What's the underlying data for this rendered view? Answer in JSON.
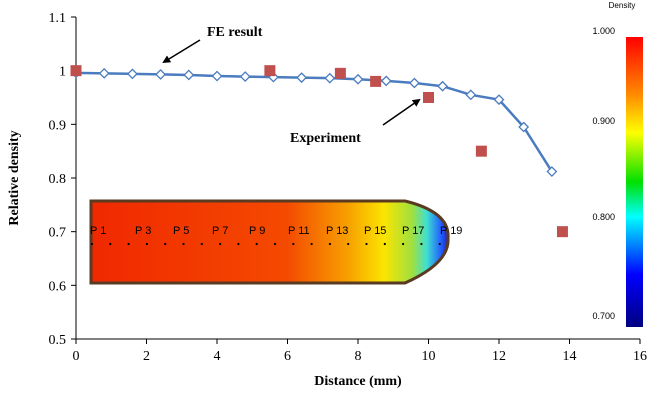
{
  "chart_data": {
    "type": "line",
    "xlabel": "Distance (mm)",
    "ylabel": "Relative density",
    "xlim": [
      0,
      16
    ],
    "ylim": [
      0.5,
      1.1
    ],
    "xticks": [
      "0",
      "2",
      "4",
      "6",
      "8",
      "10",
      "12",
      "14",
      "16"
    ],
    "yticks": [
      "0.5",
      "0.6",
      "0.7",
      "0.8",
      "0.9",
      "1",
      "1.1"
    ],
    "grid": false,
    "series": [
      {
        "name": "FE result",
        "style": "line-with-open-diamonds",
        "color": "#4a7cbf",
        "x": [
          0,
          0.8,
          1.6,
          2.4,
          3.2,
          4.0,
          4.8,
          5.6,
          6.4,
          7.2,
          8.0,
          8.8,
          9.6,
          10.4,
          11.2,
          12.0,
          12.7,
          13.5
        ],
        "y": [
          0.996,
          0.995,
          0.994,
          0.993,
          0.992,
          0.99,
          0.989,
          0.988,
          0.987,
          0.986,
          0.984,
          0.981,
          0.977,
          0.971,
          0.955,
          0.946,
          0.895,
          0.812
        ]
      },
      {
        "name": "Experiment",
        "style": "filled-squares",
        "color": "#c0504d",
        "x": [
          0,
          5.5,
          7.5,
          8.5,
          10.0,
          11.5,
          13.8
        ],
        "y": [
          1.0,
          1.0,
          0.995,
          0.98,
          0.95,
          0.85,
          0.7
        ]
      }
    ],
    "annotations": [
      {
        "text": "FE result",
        "points_to": [
          2.4,
          0.993
        ]
      },
      {
        "text": "Experiment",
        "points_to": [
          9.4,
          0.966
        ]
      }
    ],
    "inset": {
      "point_labels": [
        "P 1",
        "P 3",
        "P 5",
        "P 7",
        "P 9",
        "P 11",
        "P 13",
        "P 15",
        "P 17",
        "P 19"
      ]
    },
    "colorbar": {
      "title": "Density",
      "ticks": [
        "1.000",
        "0.900",
        "0.800",
        "0.700"
      ],
      "colors": [
        "#ff0000",
        "#ff8c00",
        "#ffff00",
        "#00e000",
        "#00ffff",
        "#0000ff",
        "#000080"
      ]
    }
  }
}
